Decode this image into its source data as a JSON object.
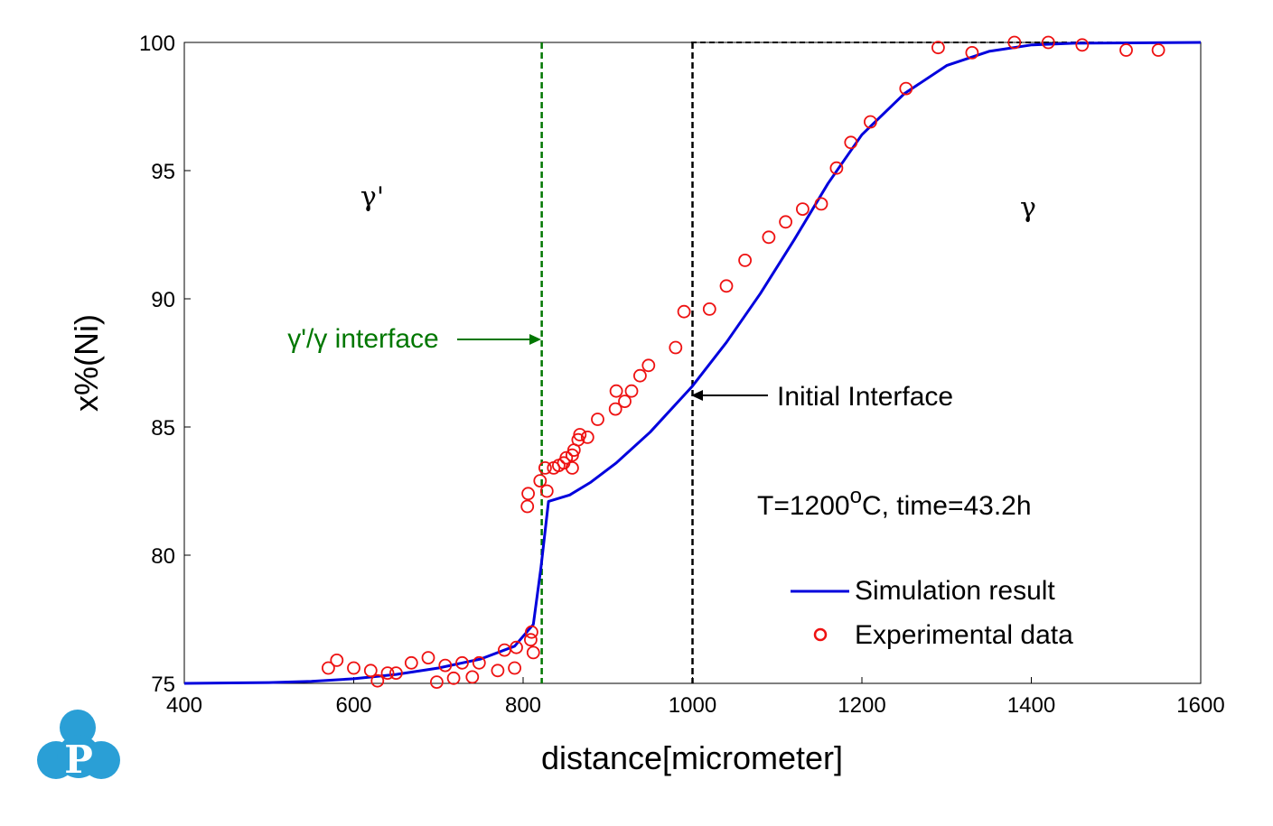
{
  "chart_data": {
    "type": "scatter",
    "xlabel": "distance[micrometer]",
    "ylabel": "x%(Ni)",
    "xlim": [
      400,
      1600
    ],
    "ylim": [
      75,
      100
    ],
    "x_ticks": [
      "400",
      "600",
      "800",
      "1000",
      "1200",
      "1400",
      "1600"
    ],
    "y_ticks": [
      "75",
      "80",
      "85",
      "90",
      "95",
      "100"
    ],
    "grid": false,
    "legend_position": "bottom-right",
    "series": [
      {
        "name": "Simulation result",
        "kind": "line",
        "color": "#0000dd",
        "points": [
          [
            400,
            75.0
          ],
          [
            500,
            75.03
          ],
          [
            550,
            75.08
          ],
          [
            600,
            75.18
          ],
          [
            650,
            75.35
          ],
          [
            700,
            75.6
          ],
          [
            750,
            75.95
          ],
          [
            790,
            76.45
          ],
          [
            812,
            77.3
          ],
          [
            821,
            79.5
          ],
          [
            830,
            82.1
          ],
          [
            855,
            82.35
          ],
          [
            880,
            82.85
          ],
          [
            910,
            83.6
          ],
          [
            950,
            84.8
          ],
          [
            1000,
            86.6
          ],
          [
            1040,
            88.3
          ],
          [
            1080,
            90.2
          ],
          [
            1120,
            92.3
          ],
          [
            1160,
            94.5
          ],
          [
            1200,
            96.4
          ],
          [
            1250,
            98.0
          ],
          [
            1300,
            99.1
          ],
          [
            1350,
            99.65
          ],
          [
            1400,
            99.9
          ],
          [
            1450,
            99.97
          ],
          [
            1600,
            100.0
          ]
        ]
      },
      {
        "name": "Experimental data",
        "kind": "scatter",
        "color": "#ee1111",
        "points": [
          [
            570,
            75.6
          ],
          [
            580,
            75.9
          ],
          [
            600,
            75.6
          ],
          [
            620,
            75.5
          ],
          [
            628,
            75.1
          ],
          [
            640,
            75.4
          ],
          [
            650,
            75.4
          ],
          [
            668,
            75.8
          ],
          [
            688,
            76.0
          ],
          [
            698,
            75.05
          ],
          [
            708,
            75.7
          ],
          [
            718,
            75.2
          ],
          [
            728,
            75.8
          ],
          [
            740,
            75.25
          ],
          [
            748,
            75.8
          ],
          [
            770,
            75.5
          ],
          [
            778,
            76.3
          ],
          [
            790,
            75.6
          ],
          [
            792,
            76.4
          ],
          [
            805,
            81.9
          ],
          [
            806,
            82.4
          ],
          [
            809,
            76.7
          ],
          [
            810,
            77.0
          ],
          [
            812,
            76.2
          ],
          [
            820,
            82.9
          ],
          [
            826,
            83.4
          ],
          [
            828,
            82.5
          ],
          [
            836,
            83.4
          ],
          [
            842,
            83.5
          ],
          [
            848,
            83.6
          ],
          [
            851,
            83.8
          ],
          [
            858,
            83.4
          ],
          [
            858,
            83.9
          ],
          [
            860,
            84.1
          ],
          [
            865,
            84.5
          ],
          [
            867,
            84.7
          ],
          [
            876,
            84.6
          ],
          [
            888,
            85.3
          ],
          [
            909,
            85.7
          ],
          [
            910,
            86.4
          ],
          [
            920,
            86.0
          ],
          [
            928,
            86.4
          ],
          [
            938,
            87.0
          ],
          [
            948,
            87.4
          ],
          [
            980,
            88.1
          ],
          [
            990,
            89.5
          ],
          [
            1020,
            89.6
          ],
          [
            1040,
            90.5
          ],
          [
            1062,
            91.5
          ],
          [
            1090,
            92.4
          ],
          [
            1110,
            93.0
          ],
          [
            1130,
            93.5
          ],
          [
            1152,
            93.7
          ],
          [
            1170,
            95.1
          ],
          [
            1187,
            96.1
          ],
          [
            1210,
            96.9
          ],
          [
            1252,
            98.2
          ],
          [
            1290,
            99.8
          ],
          [
            1330,
            99.6
          ],
          [
            1380,
            100.0
          ],
          [
            1420,
            100.0
          ],
          [
            1460,
            99.9
          ],
          [
            1512,
            99.7
          ],
          [
            1550,
            99.7
          ]
        ]
      }
    ],
    "reference_lines": [
      {
        "x": 822,
        "color": "#007700",
        "style": "dashed",
        "label": "γ'/γ interface"
      },
      {
        "x": 1000,
        "color": "#000000",
        "style": "dashed",
        "label": "Initial Interface"
      }
    ],
    "annotations": {
      "phase_left": "γ'",
      "phase_right": "γ",
      "conditions_prefix": "T=1200",
      "conditions_sup": "o",
      "conditions_suffix": "C, time=43.2h"
    }
  },
  "logo": {
    "letter": "P",
    "color": "#2a9fd6"
  }
}
